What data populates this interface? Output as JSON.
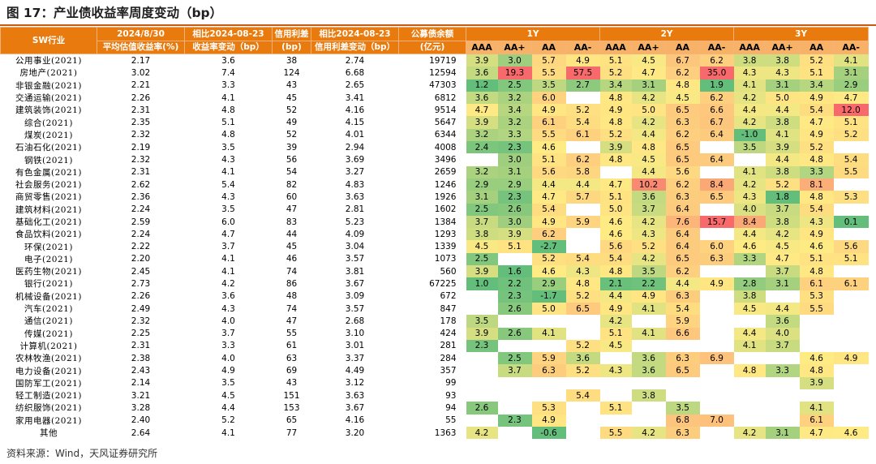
{
  "title": "图 17：产业债收益率周度变动（bp）",
  "source": "资料来源：Wind，天风证券研究所",
  "headers": {
    "sw": "SW行业",
    "date_line1": "2024/8/30",
    "date_line2": "平均估值收益率(%)",
    "chg_line1": "相比2024-08-23",
    "chg_line2": "收益率变动（bp）",
    "spread_line1": "信用利差",
    "spread_line2": "(bp)",
    "spchg_line1": "相比2024-08-23",
    "spchg_line2": "信用利差变动（bp）",
    "bal_line1": "公募债余额",
    "bal_line2": "(亿元)",
    "g1": "1Y",
    "g2": "2Y",
    "g3": "3Y",
    "ratings": [
      "AAA",
      "AA+",
      "AA",
      "AA-"
    ]
  },
  "colors": {
    "header": "#e97b0e",
    "subheader": "#f7b267",
    "heat_low": "#63be7b",
    "heat_mid": "#ffeb84",
    "heat_high": "#f8696b",
    "rule": "#c55a11"
  },
  "rows": [
    {
      "name": "公用事业(2021)",
      "avg": "2.17",
      "chg": "3.6",
      "spread": "38",
      "spchg": "2.74",
      "bal": "19719",
      "y1": [
        "3.9",
        "3.0",
        "5.7",
        "4.9"
      ],
      "y2": [
        "5.1",
        "4.5",
        "6.7",
        "6.2"
      ],
      "y3": [
        "3.8",
        "3.8",
        "5.2",
        "4.1"
      ]
    },
    {
      "name": "房地产(2021)",
      "avg": "3.02",
      "chg": "7.4",
      "spread": "124",
      "spchg": "6.68",
      "bal": "12594",
      "y1": [
        "3.6",
        "19.3",
        "5.5",
        "57.5"
      ],
      "y2": [
        "5.2",
        "4.7",
        "6.2",
        "35.0"
      ],
      "y3": [
        "4.3",
        "4.3",
        "5.1",
        "3.1"
      ]
    },
    {
      "name": "非银金融(2021)",
      "avg": "2.21",
      "chg": "3.3",
      "spread": "43",
      "spchg": "2.65",
      "bal": "47303",
      "y1": [
        "1.2",
        "2.5",
        "3.5",
        "2.7"
      ],
      "y2": [
        "3.4",
        "3.1",
        "4.8",
        "1.9"
      ],
      "y3": [
        "4.1",
        "3.1",
        "3.4",
        "2.9"
      ]
    },
    {
      "name": "交通运输(2021)",
      "avg": "2.26",
      "chg": "4.1",
      "spread": "45",
      "spchg": "3.41",
      "bal": "6812",
      "y1": [
        "3.6",
        "3.2",
        "6.0",
        ""
      ],
      "y2": [
        "4.8",
        "4.2",
        "4.5",
        "6.2"
      ],
      "y3": [
        "4.2",
        "5.0",
        "4.9",
        "4.7"
      ]
    },
    {
      "name": "建筑装饰(2021)",
      "avg": "2.31",
      "chg": "4.8",
      "spread": "52",
      "spchg": "4.16",
      "bal": "9514",
      "y1": [
        "4.7",
        "3.4",
        "4.9",
        "5.2"
      ],
      "y2": [
        "4.9",
        "5.0",
        "6.5",
        "6.6"
      ],
      "y3": [
        "4.4",
        "4.4",
        "5.4",
        "12.0"
      ]
    },
    {
      "name": "综合(2021)",
      "avg": "2.35",
      "chg": "5.1",
      "spread": "49",
      "spchg": "4.15",
      "bal": "5647",
      "y1": [
        "3.9",
        "3.2",
        "6.1",
        "5.4"
      ],
      "y2": [
        "4.8",
        "4.2",
        "6.3",
        "6.7"
      ],
      "y3": [
        "4.2",
        "3.8",
        "4.7",
        "5.1"
      ]
    },
    {
      "name": "煤炭(2021)",
      "avg": "2.32",
      "chg": "4.8",
      "spread": "52",
      "spchg": "4.01",
      "bal": "6344",
      "y1": [
        "3.2",
        "3.3",
        "5.5",
        "6.1"
      ],
      "y2": [
        "5.2",
        "4.4",
        "6.2",
        "6.4"
      ],
      "y3": [
        "-1.0",
        "4.1",
        "4.9",
        "5.2"
      ]
    },
    {
      "name": "石油石化(2021)",
      "avg": "2.19",
      "chg": "3.5",
      "spread": "39",
      "spchg": "2.94",
      "bal": "4008",
      "y1": [
        "2.4",
        "2.3",
        "4.6",
        ""
      ],
      "y2": [
        "3.9",
        "4.8",
        "6.5",
        ""
      ],
      "y3": [
        "3.5",
        "3.9",
        "5.2",
        ""
      ]
    },
    {
      "name": "钢铁(2021)",
      "avg": "2.32",
      "chg": "4.3",
      "spread": "56",
      "spchg": "3.69",
      "bal": "3496",
      "y1": [
        "",
        "3.0",
        "5.1",
        "6.2"
      ],
      "y2": [
        "4.8",
        "4.5",
        "6.5",
        "6.4"
      ],
      "y3": [
        "",
        "4.4",
        "4.8",
        "5.4"
      ]
    },
    {
      "name": "有色金属(2021)",
      "avg": "2.31",
      "chg": "4.1",
      "spread": "54",
      "spchg": "3.27",
      "bal": "2659",
      "y1": [
        "3.2",
        "3.1",
        "5.6",
        "5.8"
      ],
      "y2": [
        "",
        "4.4",
        "5.6",
        ""
      ],
      "y3": [
        "4.1",
        "3.8",
        "3.3",
        "5.5"
      ]
    },
    {
      "name": "社会服务(2021)",
      "avg": "2.62",
      "chg": "5.4",
      "spread": "82",
      "spchg": "4.83",
      "bal": "1246",
      "y1": [
        "2.9",
        "2.9",
        "4.4",
        "4.4"
      ],
      "y2": [
        "4.7",
        "10.2",
        "6.2",
        "8.4"
      ],
      "y3": [
        "4.2",
        "5.2",
        "8.1",
        ""
      ]
    },
    {
      "name": "商贸零售(2021)",
      "avg": "2.36",
      "chg": "4.3",
      "spread": "60",
      "spchg": "3.63",
      "bal": "1926",
      "y1": [
        "3.1",
        "2.3",
        "4.7",
        "5.7"
      ],
      "y2": [
        "5.1",
        "3.6",
        "6.3",
        "6.5"
      ],
      "y3": [
        "4.3",
        "1.8",
        "4.8",
        "5.3"
      ]
    },
    {
      "name": "建筑材料(2021)",
      "avg": "2.24",
      "chg": "3.5",
      "spread": "47",
      "spchg": "2.81",
      "bal": "1602",
      "y1": [
        "2.5",
        "2.6",
        "5.4",
        ""
      ],
      "y2": [
        "5.0",
        "3.7",
        "6.4",
        ""
      ],
      "y3": [
        "4.0",
        "3.7",
        "5.4",
        ""
      ]
    },
    {
      "name": "基础化工(2021)",
      "avg": "2.59",
      "chg": "6.0",
      "spread": "83",
      "spchg": "5.23",
      "bal": "1384",
      "y1": [
        "3.7",
        "3.0",
        "4.9",
        "5.9"
      ],
      "y2": [
        "4.6",
        "4.2",
        "7.6",
        "15.7"
      ],
      "y3": [
        "8.4",
        "3.8",
        "4.3",
        "0.1"
      ]
    },
    {
      "name": "食品饮料(2021)",
      "avg": "2.24",
      "chg": "4.7",
      "spread": "44",
      "spchg": "4.09",
      "bal": "1293",
      "y1": [
        "3.8",
        "3.9",
        "6.2",
        ""
      ],
      "y2": [
        "4.6",
        "4.3",
        "6.4",
        ""
      ],
      "y3": [
        "4.4",
        "4.2",
        "4.9",
        ""
      ]
    },
    {
      "name": "环保(2021)",
      "avg": "2.22",
      "chg": "3.7",
      "spread": "45",
      "spchg": "3.04",
      "bal": "1339",
      "y1": [
        "4.5",
        "5.1",
        "-2.7",
        ""
      ],
      "y2": [
        "5.6",
        "5.2",
        "6.4",
        "6.0"
      ],
      "y3": [
        "4.6",
        "4.5",
        "4.6",
        "5.6"
      ]
    },
    {
      "name": "电子(2021)",
      "avg": "2.20",
      "chg": "4.1",
      "spread": "46",
      "spchg": "3.57",
      "bal": "1073",
      "y1": [
        "2.5",
        "",
        "5.2",
        "5.4"
      ],
      "y2": [
        "5.4",
        "4.2",
        "6.5",
        "6.3"
      ],
      "y3": [
        "3.3",
        "4.7",
        "5.1",
        "5.1"
      ]
    },
    {
      "name": "医药生物(2021)",
      "avg": "2.45",
      "chg": "4.1",
      "spread": "74",
      "spchg": "3.81",
      "bal": "560",
      "y1": [
        "3.9",
        "1.6",
        "4.6",
        "4.3"
      ],
      "y2": [
        "4.8",
        "3.5",
        "6.2",
        ""
      ],
      "y3": [
        "",
        "3.7",
        "4.8",
        ""
      ]
    },
    {
      "name": "银行(2021)",
      "avg": "2.73",
      "chg": "4.2",
      "spread": "86",
      "spchg": "3.67",
      "bal": "67225",
      "y1": [
        "1.0",
        "2.2",
        "2.9",
        "4.8"
      ],
      "y2": [
        "2.1",
        "2.2",
        "4.4",
        "4.9"
      ],
      "y3": [
        "2.8",
        "3.1",
        "6.1",
        "6.1"
      ]
    },
    {
      "name": "机械设备(2021)",
      "avg": "2.26",
      "chg": "3.6",
      "spread": "48",
      "spchg": "3.09",
      "bal": "672",
      "y1": [
        "",
        "2.3",
        "-1.7",
        "5.2"
      ],
      "y2": [
        "4.4",
        "4.9",
        "6.3",
        ""
      ],
      "y3": [
        "3.8",
        "",
        "5.3",
        ""
      ]
    },
    {
      "name": "汽车(2021)",
      "avg": "2.49",
      "chg": "4.3",
      "spread": "74",
      "spchg": "3.57",
      "bal": "847",
      "y1": [
        "",
        "2.6",
        "5.0",
        "6.5"
      ],
      "y2": [
        "4.9",
        "4.1",
        "5.4",
        ""
      ],
      "y3": [
        "4.5",
        "4.4",
        "5.5",
        ""
      ]
    },
    {
      "name": "通信(2021)",
      "avg": "2.32",
      "chg": "4.0",
      "spread": "47",
      "spchg": "2.68",
      "bal": "178",
      "y1": [
        "3.5",
        "",
        "",
        ""
      ],
      "y2": [
        "4.2",
        "",
        "5.9",
        ""
      ],
      "y3": [
        "",
        "3.6",
        "",
        ""
      ]
    },
    {
      "name": "传媒(2021)",
      "avg": "2.25",
      "chg": "3.7",
      "spread": "55",
      "spchg": "3.10",
      "bal": "424",
      "y1": [
        "3.9",
        "2.6",
        "4.1",
        ""
      ],
      "y2": [
        "5.1",
        "4.1",
        "6.6",
        ""
      ],
      "y3": [
        "4.4",
        "4.0",
        "",
        ""
      ]
    },
    {
      "name": "计算机(2021)",
      "avg": "2.31",
      "chg": "3.3",
      "spread": "61",
      "spchg": "3.01",
      "bal": "281",
      "y1": [
        "2.3",
        "",
        "",
        "5.2"
      ],
      "y2": [
        "4.5",
        "",
        "",
        ""
      ],
      "y3": [
        "4.1",
        "3.7",
        "",
        ""
      ]
    },
    {
      "name": "农林牧渔(2021)",
      "avg": "2.38",
      "chg": "4.0",
      "spread": "63",
      "spchg": "3.37",
      "bal": "284",
      "y1": [
        "",
        "2.5",
        "5.9",
        "3.6"
      ],
      "y2": [
        "",
        "3.6",
        "6.3",
        "6.9"
      ],
      "y3": [
        "",
        "",
        "4.6",
        "4.9"
      ]
    },
    {
      "name": "电力设备(2021)",
      "avg": "2.43",
      "chg": "4.9",
      "spread": "69",
      "spchg": "4.49",
      "bal": "357",
      "y1": [
        "",
        "3.7",
        "6.3",
        "5.2"
      ],
      "y2": [
        "4.3",
        "3.6",
        "6.5",
        ""
      ],
      "y3": [
        "4.8",
        "3.3",
        "4.8",
        ""
      ]
    },
    {
      "name": "国防军工(2021)",
      "avg": "2.14",
      "chg": "3.5",
      "spread": "43",
      "spchg": "3.12",
      "bal": "99",
      "y1": [
        "",
        "",
        "",
        ""
      ],
      "y2": [
        "",
        "",
        "",
        ""
      ],
      "y3": [
        "",
        "",
        "3.9",
        ""
      ]
    },
    {
      "name": "轻工制造(2021)",
      "avg": "3.21",
      "chg": "4.5",
      "spread": "151",
      "spchg": "3.63",
      "bal": "93",
      "y1": [
        "",
        "",
        "",
        "5.4"
      ],
      "y2": [
        "",
        "3.8",
        "",
        ""
      ],
      "y3": [
        "",
        "",
        "",
        ""
      ]
    },
    {
      "name": "纺织服饰(2021)",
      "avg": "3.28",
      "chg": "4.4",
      "spread": "153",
      "spchg": "3.67",
      "bal": "94",
      "y1": [
        "2.6",
        "",
        "5.3",
        ""
      ],
      "y2": [
        "5.1",
        "",
        "3.5",
        ""
      ],
      "y3": [
        "",
        "",
        "4.1",
        ""
      ]
    },
    {
      "name": "家用电器(2021)",
      "avg": "2.40",
      "chg": "5.2",
      "spread": "65",
      "spchg": "4.16",
      "bal": "55",
      "y1": [
        "",
        "2.3",
        "4.9",
        ""
      ],
      "y2": [
        "",
        "",
        "6.8",
        "7.0"
      ],
      "y3": [
        "",
        "",
        "6.1",
        ""
      ]
    },
    {
      "name": "其他",
      "avg": "2.64",
      "chg": "4.1",
      "spread": "77",
      "spchg": "3.20",
      "bal": "1363",
      "y1": [
        "4.2",
        "",
        "-0.6",
        ""
      ],
      "y2": [
        "5.5",
        "4.2",
        "6.3",
        ""
      ],
      "y3": [
        "4.2",
        "3.1",
        "4.7",
        "4.6"
      ]
    }
  ]
}
